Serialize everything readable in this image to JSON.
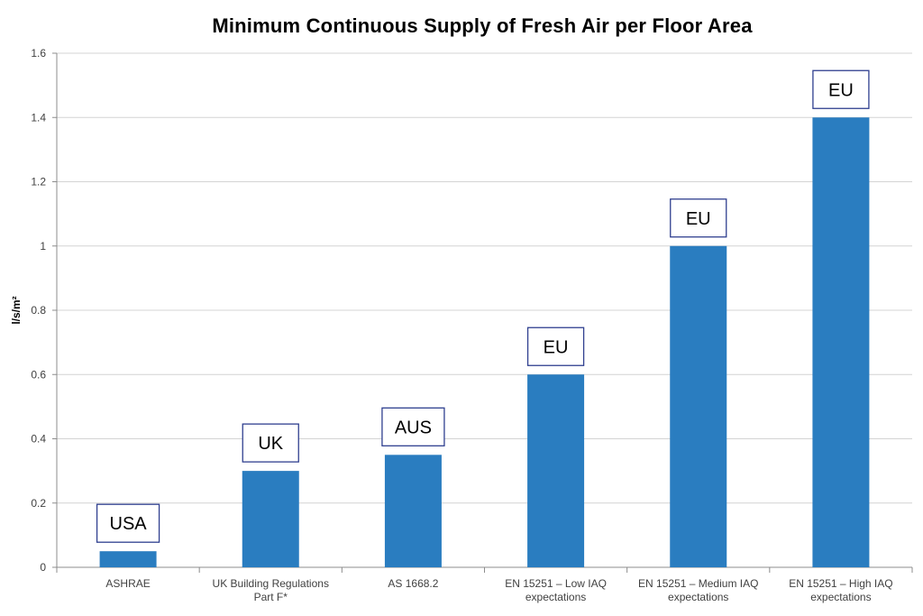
{
  "chart_data": {
    "type": "bar",
    "title": "Minimum Continuous Supply of Fresh Air per Floor Area",
    "ylabel": "l/s/m²",
    "xlabel": "",
    "ylim": [
      0,
      1.6
    ],
    "yticks": [
      "0",
      "0.2",
      "0.4",
      "0.6",
      "0.8",
      "1",
      "1.2",
      "1.4",
      "1.6"
    ],
    "grid": true,
    "bar_color": "#2a7dc0",
    "categories": [
      [
        "ASHRAE"
      ],
      [
        "UK Building Regulations",
        "Part F*"
      ],
      [
        "AS 1668.2"
      ],
      [
        "EN 15251 – Low IAQ",
        "expectations"
      ],
      [
        "EN 15251 – Medium IAQ",
        "expectations"
      ],
      [
        "EN 15251 – High IAQ",
        "expectations"
      ]
    ],
    "values": [
      0.05,
      0.3,
      0.35,
      0.6,
      1.0,
      1.4
    ],
    "annotations": [
      "USA",
      "UK",
      "AUS",
      "EU",
      "EU",
      "EU"
    ]
  }
}
